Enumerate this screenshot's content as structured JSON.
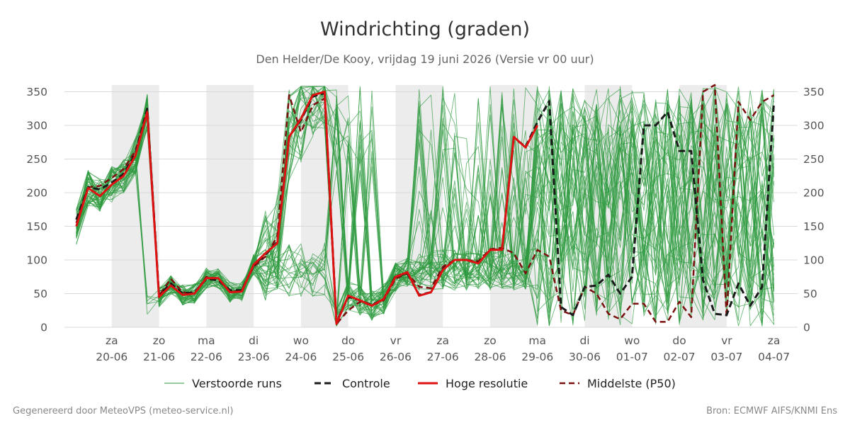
{
  "header": {
    "title": "Windrichting (graden)",
    "subtitle": "Den Helder/De Kooy, vrijdag 19 juni 2026 (Versie vr 00 uur)"
  },
  "footer": {
    "left": "Gegenereerd door MeteoVPS (meteo-service.nl)",
    "right": "Bron: ECMWF AIFS/KNMI Ens"
  },
  "chart_data": {
    "type": "line",
    "title": "Windrichting (graden)",
    "ylim": [
      0,
      360
    ],
    "yticks": [
      0,
      50,
      100,
      150,
      200,
      250,
      300,
      350
    ],
    "xlim": [
      -1,
      14.5
    ],
    "xticks": [
      {
        "x": 0,
        "day": "za",
        "date": "20-06"
      },
      {
        "x": 1,
        "day": "zo",
        "date": "21-06"
      },
      {
        "x": 2,
        "day": "ma",
        "date": "22-06"
      },
      {
        "x": 3,
        "day": "di",
        "date": "23-06"
      },
      {
        "x": 4,
        "day": "wo",
        "date": "24-06"
      },
      {
        "x": 5,
        "day": "do",
        "date": "25-06"
      },
      {
        "x": 6,
        "day": "vr",
        "date": "26-06"
      },
      {
        "x": 7,
        "day": "za",
        "date": "27-06"
      },
      {
        "x": 8,
        "day": "zo",
        "date": "28-06"
      },
      {
        "x": 9,
        "day": "ma",
        "date": "29-06"
      },
      {
        "x": 10,
        "day": "di",
        "date": "30-06"
      },
      {
        "x": 11,
        "day": "wo",
        "date": "01-07"
      },
      {
        "x": 12,
        "day": "do",
        "date": "02-07"
      },
      {
        "x": 13,
        "day": "vr",
        "date": "03-07"
      },
      {
        "x": 14,
        "day": "za",
        "date": "04-07"
      }
    ],
    "shaded_days": [
      [
        0,
        1
      ],
      [
        2,
        3
      ],
      [
        4,
        5
      ],
      [
        6,
        7
      ],
      [
        8,
        9
      ],
      [
        10,
        11
      ],
      [
        12,
        13
      ]
    ],
    "grid": true,
    "legend_position": "bottom",
    "colors": {
      "perturbed": "#2e9a3e",
      "control": "#1a1a1a",
      "high_res": "#dd1111",
      "median": "#7a1010",
      "shade": "#ececec",
      "grid": "#d9d9d9"
    },
    "series": [
      {
        "name": "Hoge resolutie",
        "style": "solid",
        "x": [
          -0.75,
          -0.5,
          -0.25,
          0,
          0.25,
          0.5,
          0.75,
          1,
          1.25,
          1.5,
          1.75,
          2,
          2.25,
          2.5,
          2.75,
          3,
          3.25,
          3.5,
          3.75,
          4,
          4.25,
          4.5,
          4.75,
          5,
          5.25,
          5.5,
          5.75,
          6,
          6.25,
          6.5,
          6.75,
          7,
          7.25,
          7.5,
          7.75,
          8,
          8.25,
          8.5,
          8.75,
          9
        ],
        "values": [
          150,
          207,
          195,
          212,
          225,
          255,
          320,
          45,
          62,
          48,
          50,
          73,
          73,
          52,
          53,
          93,
          110,
          125,
          283,
          310,
          345,
          350,
          5,
          47,
          40,
          32,
          42,
          75,
          82,
          47,
          52,
          85,
          100,
          100,
          95,
          115,
          115,
          283,
          267,
          300
        ]
      },
      {
        "name": "Controle",
        "style": "dashed",
        "x": [
          -0.75,
          -0.5,
          -0.25,
          0,
          0.25,
          0.5,
          0.75,
          1,
          1.25,
          1.5,
          1.75,
          2,
          2.25,
          2.5,
          2.75,
          3,
          3.25,
          3.5,
          3.75,
          4,
          4.25,
          4.5,
          4.75,
          5,
          5.25,
          5.5,
          5.75,
          6,
          6.25,
          6.5,
          6.75,
          7,
          7.25,
          7.5,
          7.75,
          8,
          8.25,
          8.5,
          8.75,
          9,
          9.25,
          9.5,
          9.75,
          10,
          10.25,
          10.5,
          10.75,
          11,
          11.25,
          11.5,
          11.75,
          12,
          12.25,
          12.5,
          12.75,
          13,
          13.25,
          13.5,
          13.75,
          14
        ],
        "values": [
          160,
          208,
          205,
          215,
          228,
          258,
          325,
          48,
          65,
          50,
          52,
          72,
          70,
          55,
          55,
          92,
          108,
          127,
          283,
          308,
          343,
          348,
          8,
          45,
          40,
          33,
          42,
          76,
          80,
          48,
          52,
          86,
          100,
          100,
          96,
          115,
          116,
          282,
          268,
          305,
          336,
          30,
          18,
          60,
          62,
          78,
          50,
          75,
          300,
          300,
          320,
          262,
          262,
          70,
          20,
          18,
          65,
          32,
          60,
          335
        ]
      },
      {
        "name": "Middelste (P50)",
        "style": "dashed",
        "x": [
          -0.75,
          -0.5,
          -0.25,
          0,
          0.25,
          0.5,
          0.75,
          1,
          1.25,
          1.5,
          1.75,
          2,
          2.25,
          2.5,
          2.75,
          3,
          3.25,
          3.5,
          3.75,
          4,
          4.25,
          4.5,
          4.75,
          5,
          5.25,
          5.5,
          5.75,
          6,
          6.25,
          6.5,
          6.75,
          7,
          7.25,
          7.5,
          7.75,
          8,
          8.25,
          8.5,
          8.75,
          9,
          9.25,
          9.5,
          9.75,
          10,
          10.25,
          10.5,
          10.75,
          11,
          11.25,
          11.5,
          11.75,
          12,
          12.25,
          12.5,
          12.75,
          13,
          13.25,
          13.5,
          13.75,
          14
        ],
        "values": [
          155,
          208,
          210,
          222,
          235,
          262,
          323,
          47,
          72,
          52,
          50,
          75,
          72,
          52,
          55,
          90,
          105,
          135,
          345,
          290,
          330,
          340,
          5,
          25,
          38,
          32,
          40,
          72,
          80,
          60,
          58,
          90,
          100,
          100,
          98,
          116,
          118,
          110,
          80,
          115,
          105,
          25,
          18,
          60,
          50,
          20,
          12,
          35,
          35,
          8,
          8,
          38,
          15,
          350,
          360,
          15,
          335,
          308,
          335,
          345
        ]
      }
    ]
  },
  "legend": {
    "perturbed": "Verstoorde runs",
    "control": "Controle",
    "high_res": "Hoge resolutie",
    "median": "Middelste (P50)"
  }
}
